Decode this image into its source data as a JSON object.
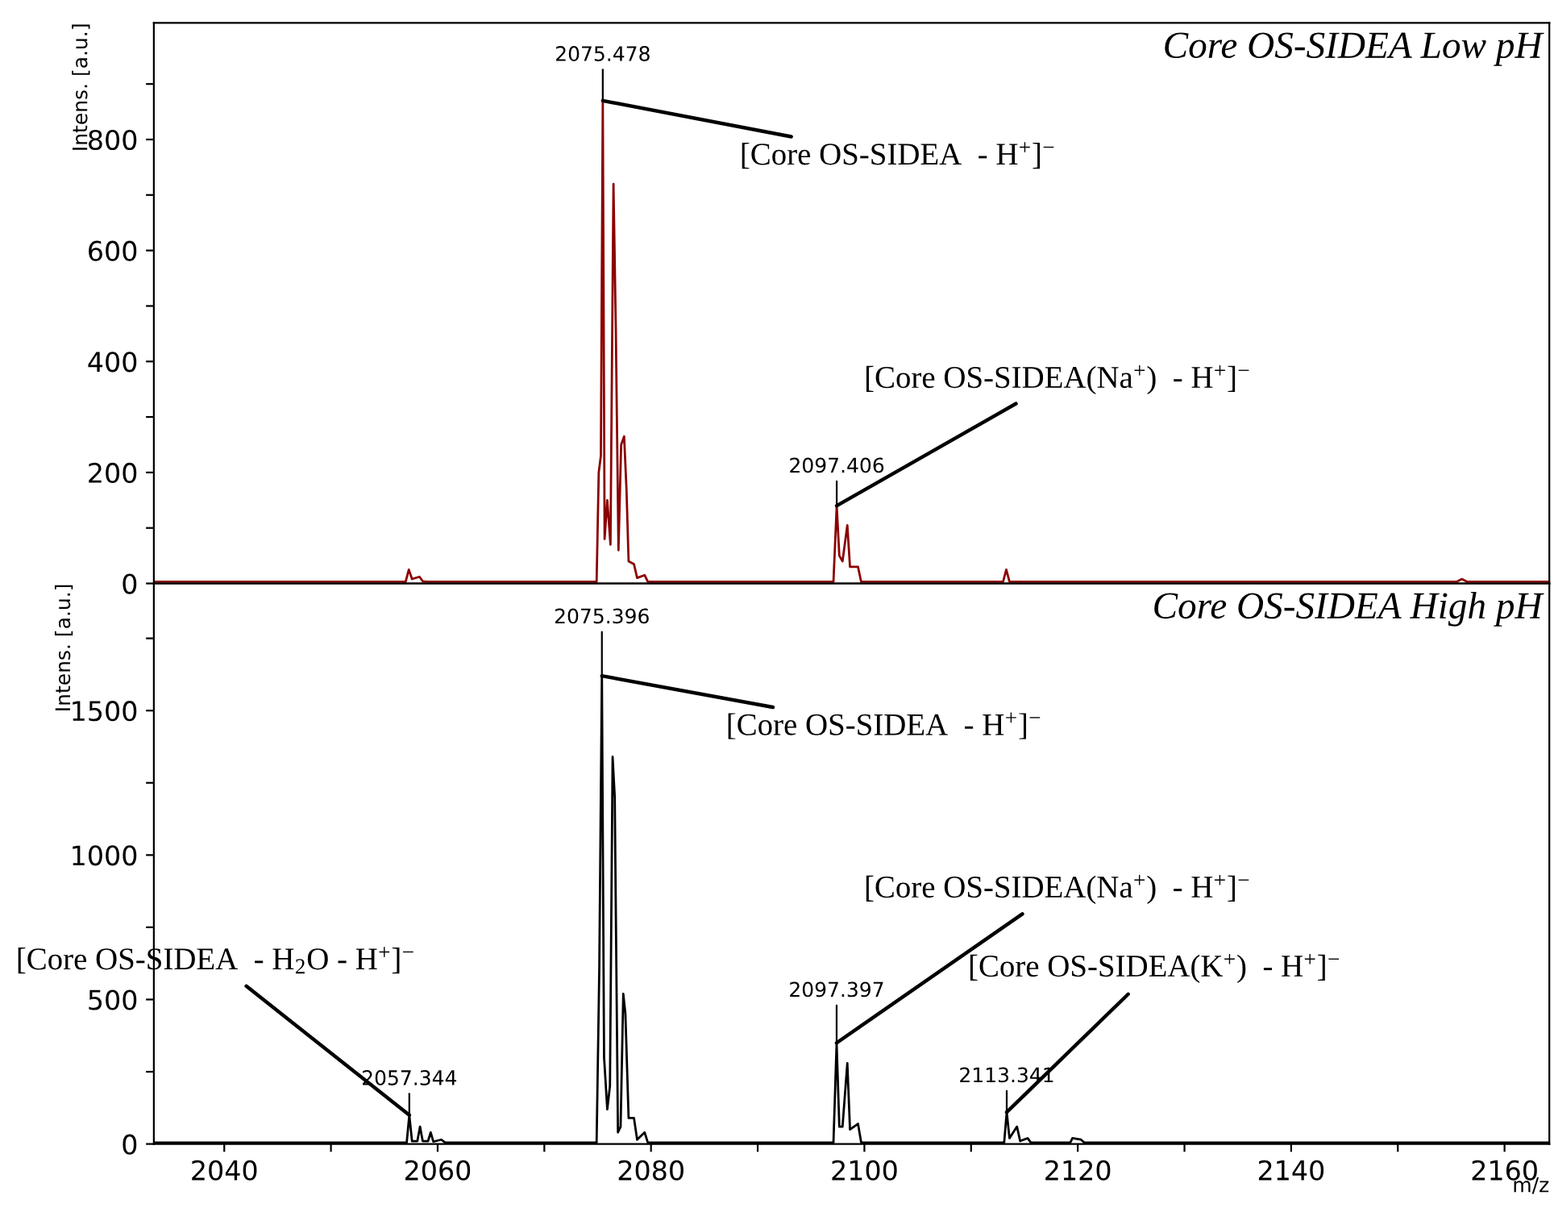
{
  "chart_data": [
    {
      "type": "line",
      "title": "Core OS-SIDEA Low pH",
      "ylabel": "Intens. [a.u.]",
      "tick_labels": "y",
      "x": [
        2033.4,
        2045,
        2057.0,
        2057.3,
        2057.6,
        2058.3,
        2058.6,
        2059.0,
        2074.9,
        2075.1,
        2075.3,
        2075.48,
        2075.65,
        2075.9,
        2076.2,
        2076.48,
        2076.7,
        2076.95,
        2077.2,
        2077.48,
        2077.7,
        2077.9,
        2078.4,
        2078.7,
        2079.4,
        2079.7,
        2081,
        2097.1,
        2097.406,
        2097.65,
        2097.95,
        2098.4,
        2098.65,
        2099.4,
        2099.7,
        2113.0,
        2113.3,
        2113.6,
        2130,
        2155.5,
        2156,
        2156.5,
        2164.2
      ],
      "series": [
        {
          "color": "#8b0000",
          "values": [
            3,
            3,
            3,
            25,
            8,
            12,
            4,
            3,
            3,
            200,
            230,
            870,
            80,
            150,
            70,
            720,
            460,
            60,
            250,
            265,
            170,
            40,
            35,
            10,
            15,
            3,
            3,
            3,
            140,
            50,
            40,
            105,
            30,
            30,
            3,
            3,
            25,
            3,
            3,
            3,
            8,
            3,
            3
          ]
        }
      ],
      "xlim": [
        2033.4,
        2164.2
      ],
      "ylim": [
        0,
        1010
      ],
      "xticks": [
        2040,
        {
          "value": 2050,
          "label": null
        },
        2060,
        {
          "value": 2070,
          "label": null
        },
        2080,
        {
          "value": 2090,
          "label": null
        },
        2100,
        {
          "value": 2110,
          "label": null
        },
        2120,
        {
          "value": 2130,
          "label": null
        },
        2140,
        {
          "value": 2150,
          "label": null
        },
        2160
      ],
      "yticks": [
        0,
        {
          "value": 100,
          "label": null
        },
        200,
        {
          "value": 300,
          "label": null
        },
        400,
        {
          "value": 500,
          "label": null
        },
        600,
        {
          "value": 700,
          "label": null
        },
        800,
        {
          "value": 900,
          "label": null
        }
      ],
      "annotations": [
        {
          "text": "2075.478",
          "x": 2075.478,
          "y": 870
        },
        {
          "text": "[Core OS-SIDEA  - H$^{+}$]$^{−}$",
          "x": 2075.478,
          "y": 870
        },
        {
          "text": "2097.406",
          "x": 2097.406,
          "y": 140
        },
        {
          "text": "[Core OS-SIDEA(Na$^{+}$)  - H$^{+}$]$^{−}$",
          "x": 2097.406,
          "y": 140
        }
      ]
    },
    {
      "type": "line",
      "title": "Core OS-SIDEA High pH",
      "ylabel": "Intens. [a.u.]",
      "xlabel": "m/z",
      "x": [
        2033.4,
        2057.1,
        2057.344,
        2057.6,
        2058.1,
        2058.35,
        2058.6,
        2059.1,
        2059.35,
        2059.6,
        2060.35,
        2060.7,
        2074.9,
        2075.15,
        2075.396,
        2075.6,
        2075.9,
        2076.15,
        2076.4,
        2076.6,
        2076.9,
        2077.15,
        2077.4,
        2077.6,
        2077.9,
        2078.4,
        2078.7,
        2079.4,
        2079.7,
        2097.1,
        2097.397,
        2097.65,
        2097.95,
        2098.4,
        2098.65,
        2099.4,
        2099.7,
        2113.1,
        2113.341,
        2113.6,
        2114.3,
        2114.6,
        2115.3,
        2115.6,
        2119.3,
        2119.5,
        2120.3,
        2120.6,
        2164.2
      ],
      "series": [
        {
          "color": "#000000",
          "values": [
            5,
            5,
            100,
            10,
            10,
            60,
            10,
            10,
            40,
            8,
            15,
            5,
            5,
            600,
            1620,
            300,
            120,
            200,
            1340,
            1200,
            40,
            60,
            520,
            450,
            90,
            90,
            15,
            40,
            5,
            5,
            350,
            60,
            60,
            280,
            50,
            70,
            5,
            5,
            110,
            20,
            60,
            10,
            20,
            5,
            5,
            20,
            15,
            5,
            5
          ]
        }
      ],
      "xlim": [
        2033.4,
        2164.2
      ],
      "ylim": [
        0,
        1940
      ],
      "xticks": [
        2040,
        {
          "value": 2050,
          "label": null
        },
        2060,
        {
          "value": 2070,
          "label": null
        },
        2080,
        {
          "value": 2090,
          "label": null
        },
        2100,
        {
          "value": 2110,
          "label": null
        },
        2120,
        {
          "value": 2130,
          "label": null
        },
        2140,
        {
          "value": 2150,
          "label": null
        },
        2160
      ],
      "yticks": [
        0,
        {
          "value": 250,
          "label": null
        },
        500,
        {
          "value": 750,
          "label": null
        },
        1000,
        {
          "value": 1250,
          "label": null
        },
        1500,
        {
          "value": 1750,
          "label": null
        }
      ],
      "annotations": [
        {
          "text": "2057.344",
          "x": 2057.344,
          "y": 100
        },
        {
          "text": "[Core OS-SIDEA  - H$_{2}$O - H$^{+}$]$^{−}$",
          "x": 2057.344,
          "y": 100
        },
        {
          "text": "2075.396",
          "x": 2075.396,
          "y": 1620
        },
        {
          "text": "[Core OS-SIDEA  - H$^{+}$]$^{−}$",
          "x": 2075.396,
          "y": 1620
        },
        {
          "text": "2097.397",
          "x": 2097.397,
          "y": 350
        },
        {
          "text": "[Core OS-SIDEA(Na$^{+}$)  - H$^{+}$]$^{−}$",
          "x": 2097.397,
          "y": 350
        },
        {
          "text": "2113.341",
          "x": 2113.341,
          "y": 110
        },
        {
          "text": "[Core OS-SIDEA(K$^{+}$)  - H$^{+}$]$^{−}$",
          "x": 2113.341,
          "y": 110
        }
      ]
    }
  ]
}
